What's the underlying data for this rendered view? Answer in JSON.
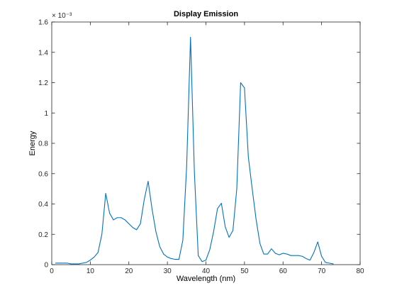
{
  "chart_data": {
    "type": "line",
    "title": "Display Emission",
    "xlabel": "Wavelength (nm)",
    "ylabel": "Energy",
    "y_scale_exponent": "× 10⁻³",
    "xlim": [
      0,
      80
    ],
    "ylim": [
      0,
      1.6
    ],
    "x_ticks": [
      "0",
      "10",
      "20",
      "30",
      "40",
      "50",
      "60",
      "70",
      "80"
    ],
    "y_ticks": [
      "0",
      "0.2",
      "0.4",
      "0.6",
      "0.8",
      "1",
      "1.2",
      "1.4",
      "1.6"
    ],
    "grid": false,
    "series": [
      {
        "color": "#0072bd",
        "x": [
          1,
          2,
          3,
          4,
          5,
          6,
          7,
          8,
          9,
          10,
          11,
          12,
          13,
          14,
          15,
          16,
          17,
          18,
          19,
          20,
          21,
          22,
          23,
          24,
          25,
          26,
          27,
          28,
          29,
          30,
          31,
          32,
          33,
          34,
          35,
          36,
          37,
          38,
          39,
          40,
          41,
          42,
          43,
          44,
          45,
          46,
          47,
          48,
          49,
          50,
          51,
          52,
          53,
          54,
          55,
          56,
          57,
          58,
          59,
          60,
          61,
          62,
          63,
          64,
          65,
          66,
          67,
          68,
          69,
          70,
          71,
          72,
          73
        ],
        "y": [
          0.01,
          0.01,
          0.01,
          0.01,
          0.005,
          0.005,
          0.005,
          0.01,
          0.015,
          0.03,
          0.05,
          0.08,
          0.2,
          0.47,
          0.34,
          0.295,
          0.31,
          0.31,
          0.295,
          0.27,
          0.245,
          0.23,
          0.27,
          0.43,
          0.55,
          0.37,
          0.22,
          0.12,
          0.07,
          0.05,
          0.04,
          0.035,
          0.035,
          0.16,
          0.65,
          1.5,
          0.61,
          0.06,
          0.02,
          0.03,
          0.1,
          0.22,
          0.37,
          0.405,
          0.25,
          0.18,
          0.225,
          0.5,
          1.2,
          1.165,
          0.71,
          0.5,
          0.3,
          0.14,
          0.07,
          0.07,
          0.105,
          0.075,
          0.065,
          0.075,
          0.07,
          0.06,
          0.06,
          0.06,
          0.055,
          0.04,
          0.03,
          0.08,
          0.15,
          0.055,
          0.015,
          0.01,
          0.005
        ]
      }
    ]
  }
}
